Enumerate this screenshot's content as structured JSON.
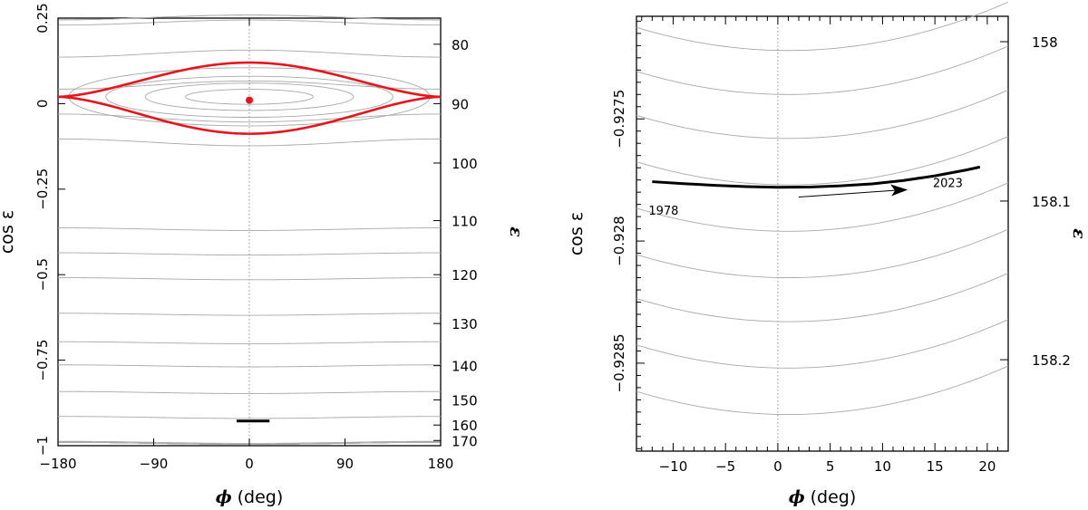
{
  "chart_data": [
    {
      "type": "line",
      "panel": "left",
      "xlabel_symbol": "ϕ",
      "xlabel_unit": "(deg)",
      "ylabel_left": "cos ε",
      "ylabel_right": "ε",
      "xlim": [
        -180,
        180
      ],
      "ylim": [
        -1,
        0.25
      ],
      "x_ticks": [
        -180,
        -90,
        0,
        90,
        180
      ],
      "x_tick_labels": [
        "−180",
        "−90",
        "0",
        "90",
        "180"
      ],
      "y_ticks": [
        0.25,
        0,
        -0.25,
        -0.5,
        -0.75,
        -1
      ],
      "y_tick_labels": [
        "0.25",
        "0",
        "−0.25",
        "−0.5",
        "−0.75",
        "−1"
      ],
      "right_ticks_eps": [
        80,
        90,
        100,
        110,
        120,
        130,
        140,
        150,
        160,
        170
      ],
      "right_tick_labels": [
        "80",
        "90",
        "100",
        "110",
        "120",
        "130",
        "140",
        "150",
        "160",
        "170"
      ],
      "grid": false,
      "dotted_vertical_at": 0,
      "curve_model": {
        "phi0_deg": 8,
        "kappa": 0.1,
        "delta": 0.0033,
        "center": 0.02
      },
      "circulating_levels": [
        0.236,
        0.217,
        0.198,
        0.18,
        0.162,
        0.148,
        0.134,
        0.084,
        0.07,
        0.056,
        0.036,
        0.02,
        0.007,
        -0.008,
        -0.022,
        -0.036,
        -0.05,
        -0.064,
        -0.078,
        -0.092,
        -0.104,
        -0.118,
        -0.132,
        -0.15,
        -0.166,
        -0.182,
        -0.202
      ],
      "libration_levels": [
        0.118,
        0.105,
        0.092,
        0.08
      ],
      "separatrix_level": 0.13,
      "equilibrium": {
        "phi": 0,
        "cos_eps": 0.01
      },
      "trajectory_segment": {
        "x": [
          -12,
          19
        ],
        "y": [
          -0.9277,
          -0.9277
        ]
      }
    },
    {
      "type": "line",
      "panel": "right",
      "xlabel_symbol": "ϕ",
      "xlabel_unit": "(deg)",
      "ylabel_left": "cos ε",
      "ylabel_right": "ε",
      "xlim": [
        -13.5,
        22
      ],
      "ylim": [
        -0.92886,
        -0.92708
      ],
      "x_ticks": [
        -10,
        -5,
        0,
        5,
        10,
        15,
        20
      ],
      "x_tick_labels": [
        "−10",
        "−5",
        "0",
        "5",
        "10",
        "15",
        "20"
      ],
      "y_ticks": [
        -0.9275,
        -0.928,
        -0.9285
      ],
      "y_tick_labels": [
        "−0.9275",
        "−0.928",
        "−0.9285"
      ],
      "y_minor_step": 5e-05,
      "right_ticks_eps": [
        158,
        158.1,
        158.2
      ],
      "right_tick_labels": [
        "158",
        "158.1",
        "158.2"
      ],
      "grid": false,
      "dotted_vertical_at": 0,
      "contour_model": {
        "phi0_deg": 1,
        "k": 4.5e-07
      },
      "contour_levels": [
        -0.92722,
        -0.9274,
        -0.92758,
        -0.92777,
        -0.92796,
        -0.92815,
        -0.92833,
        -0.92852,
        -0.92871
      ],
      "trajectory": {
        "x": [
          -12,
          -9,
          -6,
          -3,
          0,
          3,
          6,
          9,
          12,
          15,
          18,
          19.3
        ],
        "y": [
          -0.927757,
          -0.927765,
          -0.927772,
          -0.927777,
          -0.92778,
          -0.927779,
          -0.927774,
          -0.927766,
          -0.927752,
          -0.927733,
          -0.927709,
          -0.927697
        ]
      },
      "annotations": [
        {
          "text": "1978",
          "x": -12,
          "y": -0.92778
        },
        {
          "text": "2023",
          "x": 19.3,
          "y": -0.92769
        }
      ],
      "arrow": {
        "from": [
          2,
          -0.92782
        ],
        "to": [
          12.4,
          -0.92779
        ]
      }
    }
  ]
}
